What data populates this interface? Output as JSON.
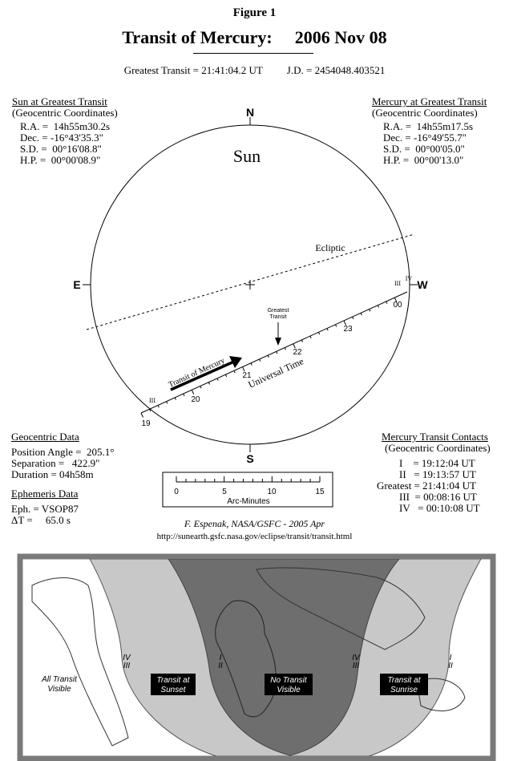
{
  "figure_label": "Figure 1",
  "title": {
    "main": "Transit of Mercury:",
    "date": "2006 Nov 08"
  },
  "greatest_transit": {
    "label": "Greatest Transit =",
    "time": "21:41:04.2 UT",
    "jd_label": "J.D. =",
    "jd_value": "2454048.403521"
  },
  "sun_panel": {
    "heading": "Sun at Greatest Transit",
    "sub": "(Geocentric Coordinates)",
    "rows": [
      "R.A. =  14h55m30.2s",
      "Dec. = -16°43'35.3\"",
      "S.D. =  00°16'08.8\"",
      "H.P. =  00°00'08.9\""
    ]
  },
  "mercury_panel": {
    "heading": "Mercury at Greatest Transit",
    "sub": "(Geocentric Coordinates)",
    "rows": [
      "R.A. =  14h55m17.5s",
      "Dec. = -16°49'55.7\"",
      "S.D. =  00°00'05.0\"",
      "H.P. =  00°00'13.0\""
    ]
  },
  "diagram": {
    "sun_label": "Sun",
    "north": "N",
    "south": "S",
    "east": "E",
    "west": "W",
    "ecliptic_label": "Ecliptic",
    "greatest_label_1": "Greatest",
    "greatest_label_2": "Transit",
    "transit_label": "Transit of Mercury",
    "ut_label": "Universal Time",
    "hours": [
      "19",
      "20",
      "21",
      "22",
      "23",
      "00"
    ],
    "contact_iii_left": "III",
    "contact_iii_right": "III",
    "contact_iv_right": "IV"
  },
  "geocentric": {
    "heading": "Geocentric Data",
    "rows": [
      "Position Angle =  205.1°",
      "Separation =   422.9\"",
      "Duration = 04h58m"
    ]
  },
  "ephemeris": {
    "heading": "Ephemeris Data",
    "rows": [
      "Eph. = VSOP87",
      "ΔT =     65.0 s"
    ]
  },
  "scale": {
    "ticks": [
      "0",
      "5",
      "10",
      "15"
    ],
    "label": "Arc-Minutes"
  },
  "contacts": {
    "heading": "Mercury Transit Contacts",
    "sub": "(Geocentric Coordinates)",
    "rows": [
      "I    = 19:12:04 UT",
      "II   = 19:13:57 UT",
      "Greatest = 21:41:04 UT",
      "III  = 00:08:16 UT",
      "IV   = 00:10:08 UT"
    ]
  },
  "credit": "F. Espenak, NASA/GSFC - 2005 Apr",
  "url": "http://sunearth.gsfc.nasa.gov/eclipse/transit/transit.html",
  "map": {
    "all_transit": [
      "All Transit",
      "Visible"
    ],
    "sunset": [
      "Transit at",
      "Sunset"
    ],
    "no_transit": [
      "No Transit",
      "Visible"
    ],
    "sunrise": [
      "Transit at",
      "Sunrise"
    ],
    "curve_labels": {
      "iv": "IV",
      "iii": "III",
      "i": "I",
      "ii": "II"
    },
    "colors": {
      "light_zone": "#c8c8c8",
      "dark_zone": "#6e6e6e",
      "frame": "#7a7a7a"
    }
  }
}
